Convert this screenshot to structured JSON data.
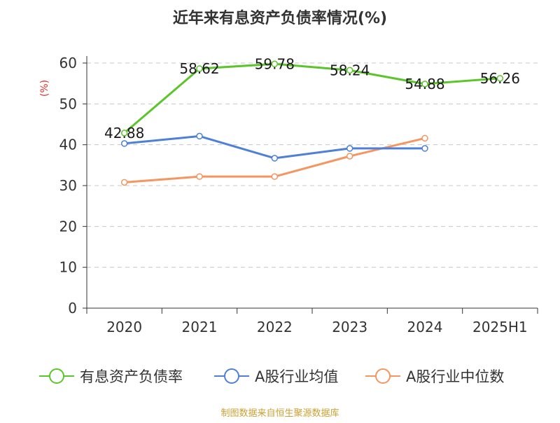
{
  "chart_data": {
    "type": "line",
    "title": "近年来有息资产负债率情况(%)",
    "ylabel": "(%)",
    "xlabel": "",
    "categories": [
      "2020",
      "2021",
      "2022",
      "2023",
      "2024",
      "2025H1"
    ],
    "ylim": [
      0,
      60
    ],
    "yticks": [
      0,
      10,
      20,
      30,
      40,
      50,
      60
    ],
    "grid": true,
    "legend_position": "bottom",
    "series": [
      {
        "name": "有息资产负债率",
        "color": "#5cc52b",
        "values": [
          42.88,
          58.62,
          59.78,
          58.24,
          54.88,
          56.26
        ],
        "labels": [
          "42.88",
          "58.62",
          "59.78",
          "58.24",
          "54.88",
          "56.26"
        ]
      },
      {
        "name": "A股行业均值",
        "color": "#4f80d9",
        "values": [
          40.3,
          42.1,
          36.7,
          39.1,
          39.1,
          null
        ]
      },
      {
        "name": "A股行业中位数",
        "color": "#f59560",
        "values": [
          30.8,
          32.2,
          32.2,
          37.2,
          41.6,
          null
        ]
      }
    ]
  },
  "source_note": "制图数据来自恒生聚源数据库"
}
